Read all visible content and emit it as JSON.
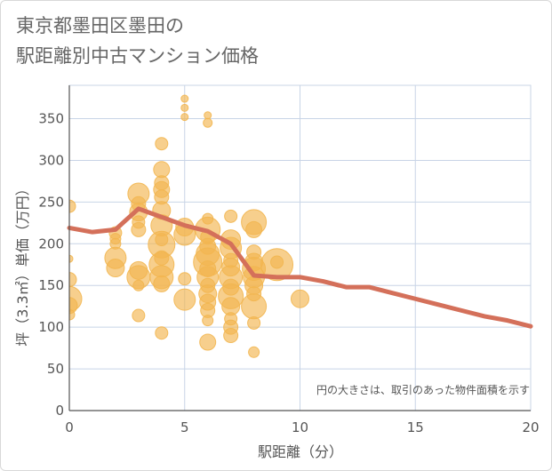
{
  "chart_data": {
    "type": "scatter",
    "title_lines": [
      "東京都墨田区墨田の",
      "駅距離別中古マンション価格"
    ],
    "xlabel": "駅距離（分）",
    "ylabel": "坪（3.3㎡）単価（万円）",
    "xlim": [
      0,
      20
    ],
    "ylim": [
      0,
      390
    ],
    "xticks": [
      0,
      5,
      10,
      15,
      20
    ],
    "yticks": [
      0,
      50,
      100,
      150,
      200,
      250,
      300,
      350
    ],
    "grid": true,
    "note": "円の大きさは、取引のあった物件面積を示す",
    "colors": {
      "bubble": "#f2b650",
      "line": "#d4705a",
      "grid": "#c8d4e6",
      "axis": "#555555"
    },
    "line_series": {
      "x": [
        0,
        1,
        2,
        3,
        4,
        5,
        6,
        7,
        8,
        9,
        10,
        11,
        12,
        13,
        14,
        15,
        16,
        17,
        18,
        19,
        20
      ],
      "values": [
        219,
        214,
        217,
        242,
        232,
        222,
        215,
        200,
        162,
        160,
        160,
        155,
        148,
        148,
        141,
        134,
        127,
        120,
        113,
        108,
        101
      ]
    },
    "points": [
      {
        "x": 0,
        "y": 245,
        "s": 7
      },
      {
        "x": 0,
        "y": 182,
        "s": 4
      },
      {
        "x": 0,
        "y": 157,
        "s": 8
      },
      {
        "x": 0,
        "y": 134,
        "s": 14
      },
      {
        "x": 0,
        "y": 115,
        "s": 6
      },
      {
        "x": 0,
        "y": 126,
        "s": 9
      },
      {
        "x": 2,
        "y": 213,
        "s": 7
      },
      {
        "x": 2,
        "y": 200,
        "s": 6
      },
      {
        "x": 2,
        "y": 183,
        "s": 12
      },
      {
        "x": 2,
        "y": 171,
        "s": 10
      },
      {
        "x": 2,
        "y": 206,
        "s": 6
      },
      {
        "x": 3,
        "y": 260,
        "s": 12
      },
      {
        "x": 3,
        "y": 248,
        "s": 8
      },
      {
        "x": 3,
        "y": 238,
        "s": 10
      },
      {
        "x": 3,
        "y": 226,
        "s": 7
      },
      {
        "x": 3,
        "y": 217,
        "s": 8
      },
      {
        "x": 3,
        "y": 168,
        "s": 10
      },
      {
        "x": 3,
        "y": 160,
        "s": 13
      },
      {
        "x": 3,
        "y": 150,
        "s": 6
      },
      {
        "x": 3,
        "y": 114,
        "s": 7
      },
      {
        "x": 4,
        "y": 320,
        "s": 7
      },
      {
        "x": 4,
        "y": 289,
        "s": 9
      },
      {
        "x": 4,
        "y": 273,
        "s": 8
      },
      {
        "x": 4,
        "y": 265,
        "s": 9
      },
      {
        "x": 4,
        "y": 256,
        "s": 8
      },
      {
        "x": 4,
        "y": 240,
        "s": 10
      },
      {
        "x": 4,
        "y": 222,
        "s": 12
      },
      {
        "x": 4,
        "y": 205,
        "s": 7
      },
      {
        "x": 4,
        "y": 199,
        "s": 15
      },
      {
        "x": 4,
        "y": 183,
        "s": 8
      },
      {
        "x": 4,
        "y": 175,
        "s": 14
      },
      {
        "x": 4,
        "y": 160,
        "s": 13
      },
      {
        "x": 4,
        "y": 152,
        "s": 9
      },
      {
        "x": 4,
        "y": 93,
        "s": 7
      },
      {
        "x": 5,
        "y": 220,
        "s": 10
      },
      {
        "x": 5,
        "y": 211,
        "s": 12
      },
      {
        "x": 5,
        "y": 158,
        "s": 7
      },
      {
        "x": 5,
        "y": 133,
        "s": 12
      },
      {
        "x": 5,
        "y": 374,
        "s": 4
      },
      {
        "x": 5,
        "y": 363,
        "s": 4
      },
      {
        "x": 5,
        "y": 352,
        "s": 4
      },
      {
        "x": 6,
        "y": 354,
        "s": 4
      },
      {
        "x": 6,
        "y": 345,
        "s": 5
      },
      {
        "x": 6,
        "y": 230,
        "s": 6
      },
      {
        "x": 6,
        "y": 217,
        "s": 14
      },
      {
        "x": 6,
        "y": 208,
        "s": 8
      },
      {
        "x": 6,
        "y": 197,
        "s": 9
      },
      {
        "x": 6,
        "y": 188,
        "s": 13
      },
      {
        "x": 6,
        "y": 178,
        "s": 16
      },
      {
        "x": 6,
        "y": 170,
        "s": 9
      },
      {
        "x": 6,
        "y": 160,
        "s": 12
      },
      {
        "x": 6,
        "y": 150,
        "s": 8
      },
      {
        "x": 6,
        "y": 140,
        "s": 10
      },
      {
        "x": 6,
        "y": 130,
        "s": 9
      },
      {
        "x": 6,
        "y": 120,
        "s": 8
      },
      {
        "x": 6,
        "y": 108,
        "s": 6
      },
      {
        "x": 6,
        "y": 82,
        "s": 9
      },
      {
        "x": 7,
        "y": 233,
        "s": 7
      },
      {
        "x": 7,
        "y": 205,
        "s": 11
      },
      {
        "x": 7,
        "y": 195,
        "s": 12
      },
      {
        "x": 7,
        "y": 180,
        "s": 8
      },
      {
        "x": 7,
        "y": 172,
        "s": 10
      },
      {
        "x": 7,
        "y": 160,
        "s": 13
      },
      {
        "x": 7,
        "y": 148,
        "s": 9
      },
      {
        "x": 7,
        "y": 137,
        "s": 14
      },
      {
        "x": 7,
        "y": 125,
        "s": 10
      },
      {
        "x": 7,
        "y": 110,
        "s": 7
      },
      {
        "x": 7,
        "y": 100,
        "s": 8
      },
      {
        "x": 7,
        "y": 90,
        "s": 8
      },
      {
        "x": 8,
        "y": 226,
        "s": 14
      },
      {
        "x": 8,
        "y": 217,
        "s": 9
      },
      {
        "x": 8,
        "y": 190,
        "s": 8
      },
      {
        "x": 8,
        "y": 178,
        "s": 10
      },
      {
        "x": 8,
        "y": 170,
        "s": 13
      },
      {
        "x": 8,
        "y": 160,
        "s": 12
      },
      {
        "x": 8,
        "y": 150,
        "s": 10
      },
      {
        "x": 8,
        "y": 140,
        "s": 8
      },
      {
        "x": 8,
        "y": 125,
        "s": 14
      },
      {
        "x": 8,
        "y": 105,
        "s": 7
      },
      {
        "x": 8,
        "y": 70,
        "s": 6
      },
      {
        "x": 9,
        "y": 175,
        "s": 18
      },
      {
        "x": 9,
        "y": 178,
        "s": 7
      },
      {
        "x": 10,
        "y": 134,
        "s": 10
      }
    ]
  }
}
